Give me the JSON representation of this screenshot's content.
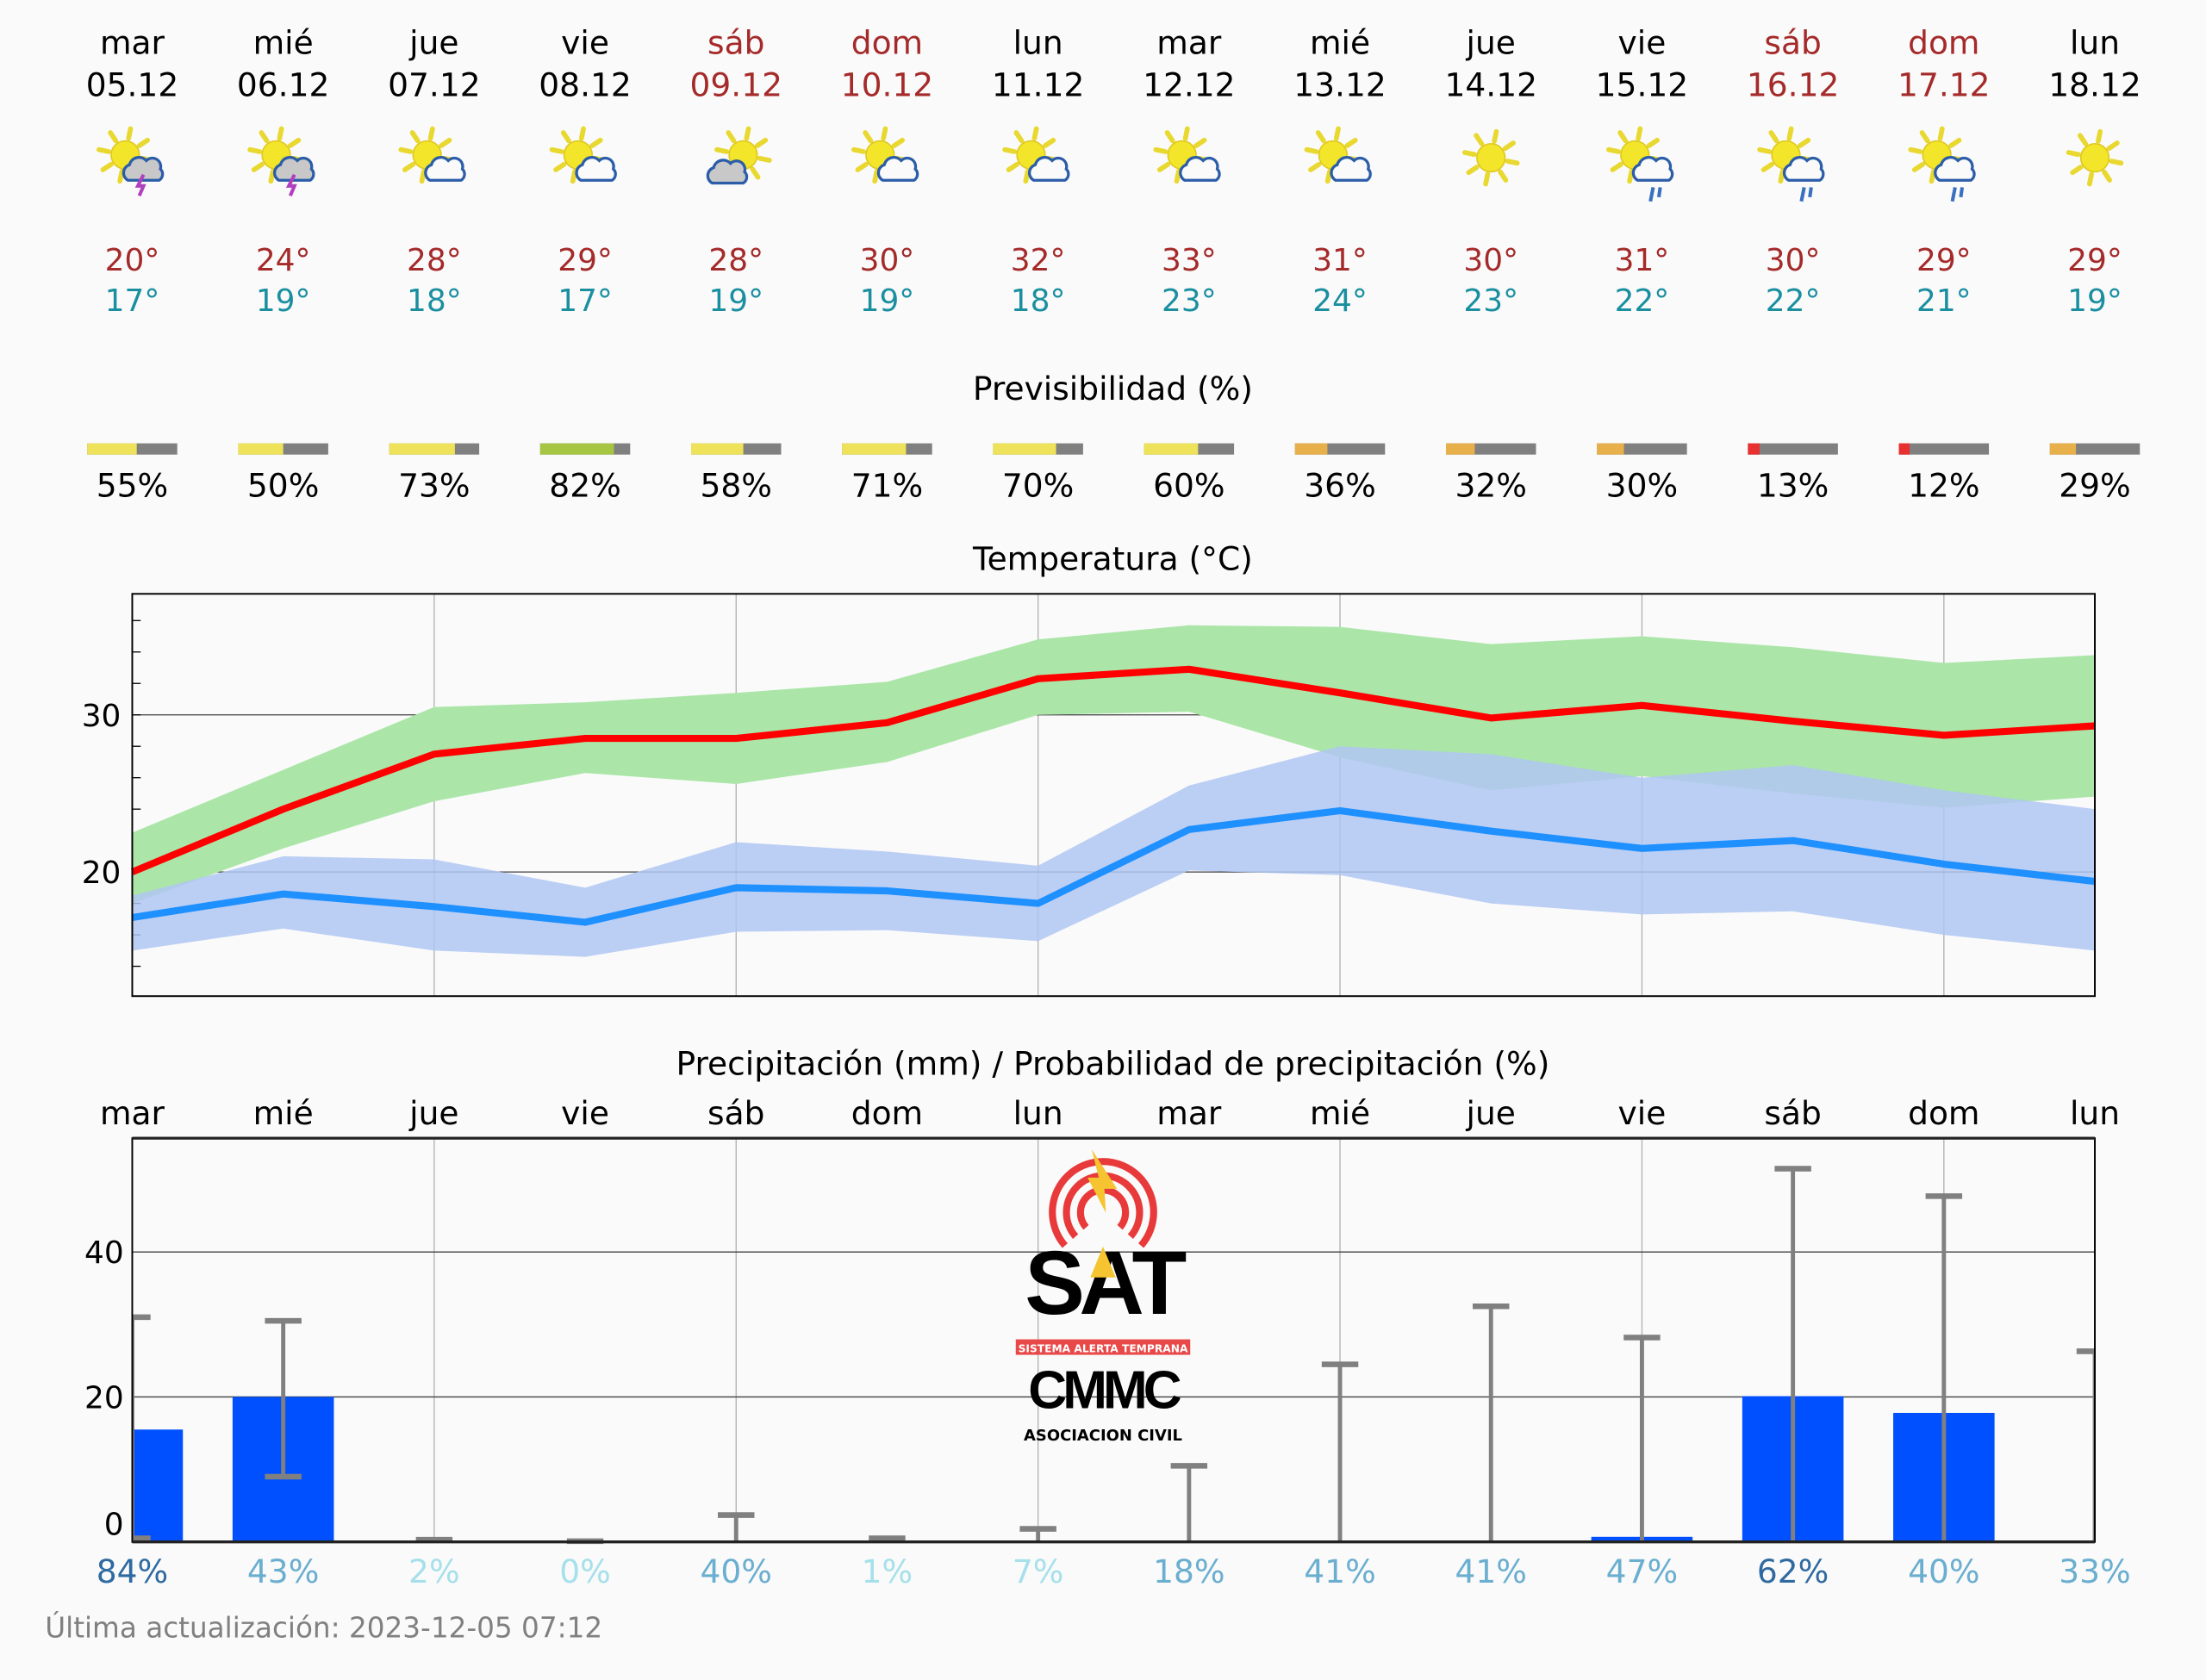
{
  "colors": {
    "weekday": "#000000",
    "weekend": "#a52a2a",
    "tmax": "#a52a2a",
    "tmin": "#1a8fa0",
    "max_line": "#ff0000",
    "max_band": "#abe6a8",
    "min_line": "#1e90ff",
    "min_band": "#afc6f2",
    "precip_bar": "#0050ff",
    "error_bar": "#808080"
  },
  "days": [
    {
      "name": "mar",
      "date": "05.12",
      "weekend": false,
      "icon": "thunderstorm-icon",
      "tmax": "20°",
      "tmin": "17°"
    },
    {
      "name": "mié",
      "date": "06.12",
      "weekend": false,
      "icon": "thunderstorm-icon",
      "tmax": "24°",
      "tmin": "19°"
    },
    {
      "name": "jue",
      "date": "07.12",
      "weekend": false,
      "icon": "partly-cloudy-icon",
      "tmax": "28°",
      "tmin": "18°"
    },
    {
      "name": "vie",
      "date": "08.12",
      "weekend": false,
      "icon": "partly-cloudy-icon",
      "tmax": "29°",
      "tmin": "17°"
    },
    {
      "name": "sáb",
      "date": "09.12",
      "weekend": true,
      "icon": "cloudy-sun-icon",
      "tmax": "28°",
      "tmin": "19°"
    },
    {
      "name": "dom",
      "date": "10.12",
      "weekend": true,
      "icon": "partly-cloudy-icon",
      "tmax": "30°",
      "tmin": "19°"
    },
    {
      "name": "lun",
      "date": "11.12",
      "weekend": false,
      "icon": "partly-cloudy-icon",
      "tmax": "32°",
      "tmin": "18°"
    },
    {
      "name": "mar",
      "date": "12.12",
      "weekend": false,
      "icon": "partly-cloudy-icon",
      "tmax": "33°",
      "tmin": "23°"
    },
    {
      "name": "mié",
      "date": "13.12",
      "weekend": false,
      "icon": "partly-cloudy-icon",
      "tmax": "31°",
      "tmin": "24°"
    },
    {
      "name": "jue",
      "date": "14.12",
      "weekend": false,
      "icon": "sunny-icon",
      "tmax": "30°",
      "tmin": "23°"
    },
    {
      "name": "vie",
      "date": "15.12",
      "weekend": false,
      "icon": "sun-rain-icon",
      "tmax": "31°",
      "tmin": "22°"
    },
    {
      "name": "sáb",
      "date": "16.12",
      "weekend": true,
      "icon": "sun-rain-icon",
      "tmax": "30°",
      "tmin": "22°"
    },
    {
      "name": "dom",
      "date": "17.12",
      "weekend": true,
      "icon": "sun-rain-icon",
      "tmax": "29°",
      "tmin": "21°"
    },
    {
      "name": "lun",
      "date": "18.12",
      "weekend": false,
      "icon": "sunny-icon",
      "tmax": "29°",
      "tmin": "19°"
    }
  ],
  "predictability": {
    "title": "Previsibilidad (%)",
    "values": [
      55,
      50,
      73,
      82,
      58,
      71,
      70,
      60,
      36,
      32,
      30,
      13,
      12,
      29
    ],
    "labels": [
      "55%",
      "50%",
      "73%",
      "82%",
      "58%",
      "71%",
      "70%",
      "60%",
      "36%",
      "32%",
      "30%",
      "13%",
      "12%",
      "29%"
    ]
  },
  "chart_data": [
    {
      "type": "line",
      "title": "Temperatura (°C)",
      "ylim": [
        12.1,
        37.7
      ],
      "yticks": [
        20,
        30
      ],
      "ytick_labels": [
        "20",
        "30"
      ],
      "grid": true,
      "series": [
        {
          "name": "max",
          "values": [
            20,
            24,
            27.5,
            28.5,
            28.5,
            29.5,
            32.3,
            32.9,
            31.4,
            29.8,
            30.6,
            29.6,
            28.7,
            29.3
          ],
          "band_upper": [
            22.5,
            26.5,
            30.5,
            30.8,
            31.4,
            32.1,
            34.8,
            35.7,
            35.6,
            34.5,
            35,
            34.3,
            33.3,
            33.8
          ],
          "band_lower": [
            18,
            21.5,
            24.5,
            26.3,
            25.6,
            27,
            30,
            30.2,
            27.3,
            25.2,
            26.1,
            25,
            24.1,
            24.8
          ]
        },
        {
          "name": "min",
          "values": [
            17.1,
            18.6,
            17.8,
            16.8,
            19,
            18.8,
            18,
            22.7,
            23.9,
            22.6,
            21.5,
            22,
            20.5,
            19.4
          ],
          "band_upper": [
            18.5,
            21,
            20.8,
            19,
            21.9,
            21.3,
            20.4,
            25.5,
            28,
            27.5,
            26,
            26.8,
            25.2,
            24
          ],
          "band_lower": [
            15,
            16.4,
            15,
            14.6,
            16.2,
            16.3,
            15.6,
            20.1,
            19.8,
            18,
            17.3,
            17.5,
            16,
            15
          ]
        }
      ]
    },
    {
      "type": "bar",
      "title": "Precipitación (mm) / Probabilidad de precipitación (%)",
      "categories": [
        "mar",
        "mié",
        "jue",
        "vie",
        "sáb",
        "dom",
        "lun",
        "mar",
        "mié",
        "jue",
        "vie",
        "sáb",
        "dom",
        "lun"
      ],
      "ylim": [
        0,
        55.7
      ],
      "yticks": [
        0,
        20,
        40
      ],
      "ytick_labels": [
        "0",
        "20",
        "40"
      ],
      "values": [
        15.5,
        20,
        0,
        0,
        0,
        0,
        0,
        0,
        0,
        0,
        0.7,
        20.1,
        17.8,
        0
      ],
      "error_low": [
        0.5,
        9,
        0,
        0,
        0,
        0,
        0,
        0,
        0,
        0,
        0,
        0,
        0,
        0
      ],
      "error_high": [
        31,
        30.5,
        0.3,
        0.1,
        3.7,
        0.5,
        1.8,
        10.5,
        24.5,
        32.5,
        28.2,
        51.5,
        47.7,
        26.3
      ],
      "probability": [
        84,
        43,
        2,
        0,
        40,
        1,
        7,
        18,
        41,
        41,
        47,
        62,
        40,
        33
      ],
      "probability_labels": [
        "84%",
        "43%",
        "2%",
        "0%",
        "40%",
        "1%",
        "7%",
        "18%",
        "41%",
        "41%",
        "47%",
        "62%",
        "40%",
        "33%"
      ]
    }
  ],
  "logo": {
    "text": "SAT",
    "subtitle": "SISTEMA ALERTA TEMPRANA",
    "org": "CMMC",
    "org_sub": "ASOCIACION CIVIL"
  },
  "footer": {
    "updated": "Última actualización: 2023-12-05 07:12"
  }
}
